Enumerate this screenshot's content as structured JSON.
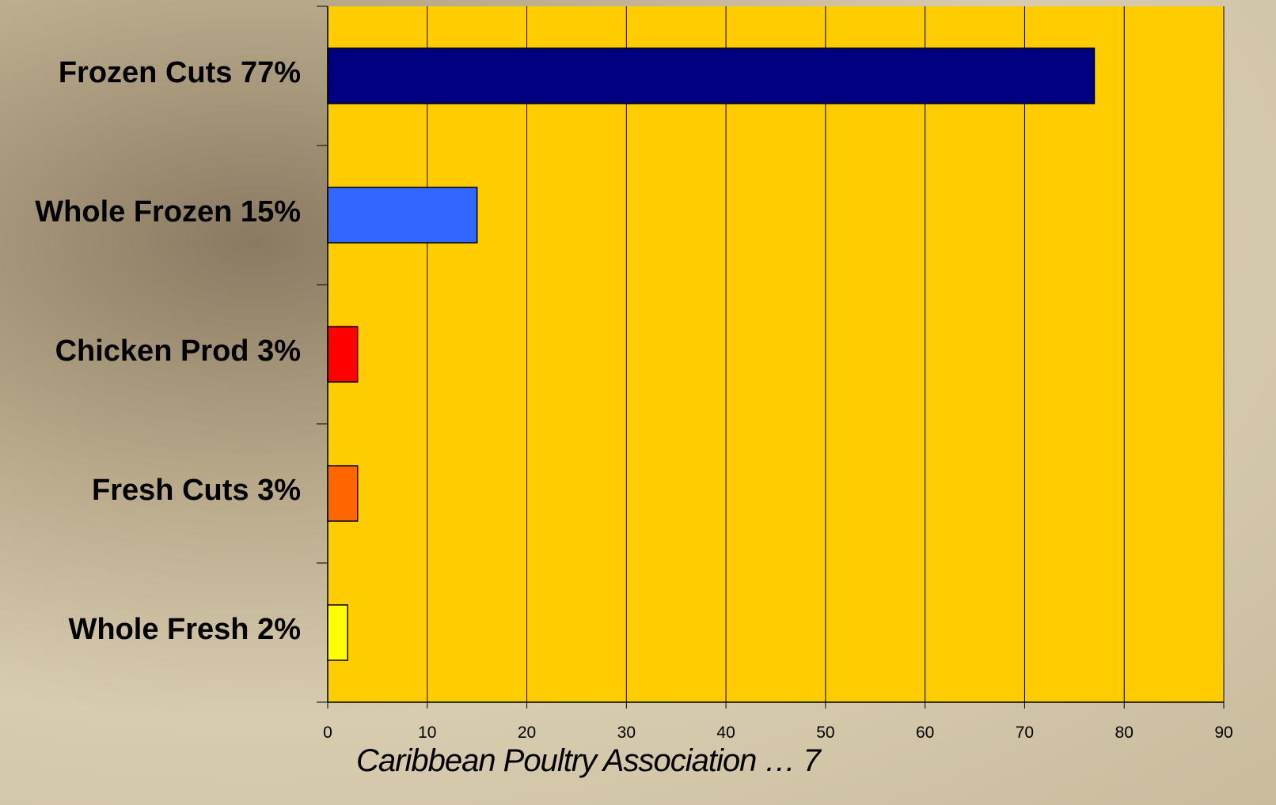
{
  "chart_data": {
    "type": "bar",
    "orientation": "horizontal",
    "categories": [
      "Frozen Cuts 77%",
      "Whole Frozen 15%",
      "Chicken Prod 3%",
      "Fresh Cuts 3%",
      "Whole Fresh 2%"
    ],
    "values": [
      77,
      15,
      3,
      3,
      2
    ],
    "colors": [
      "#000080",
      "#3366ff",
      "#ff0000",
      "#ff6600",
      "#ffff00"
    ],
    "xlim": [
      0,
      90
    ],
    "xticks": [
      0,
      10,
      20,
      30,
      40,
      50,
      60,
      70,
      80,
      90
    ],
    "grid": true,
    "plot_background": "#ffcc00",
    "footer": "Caribbean Poultry Association … 7"
  }
}
